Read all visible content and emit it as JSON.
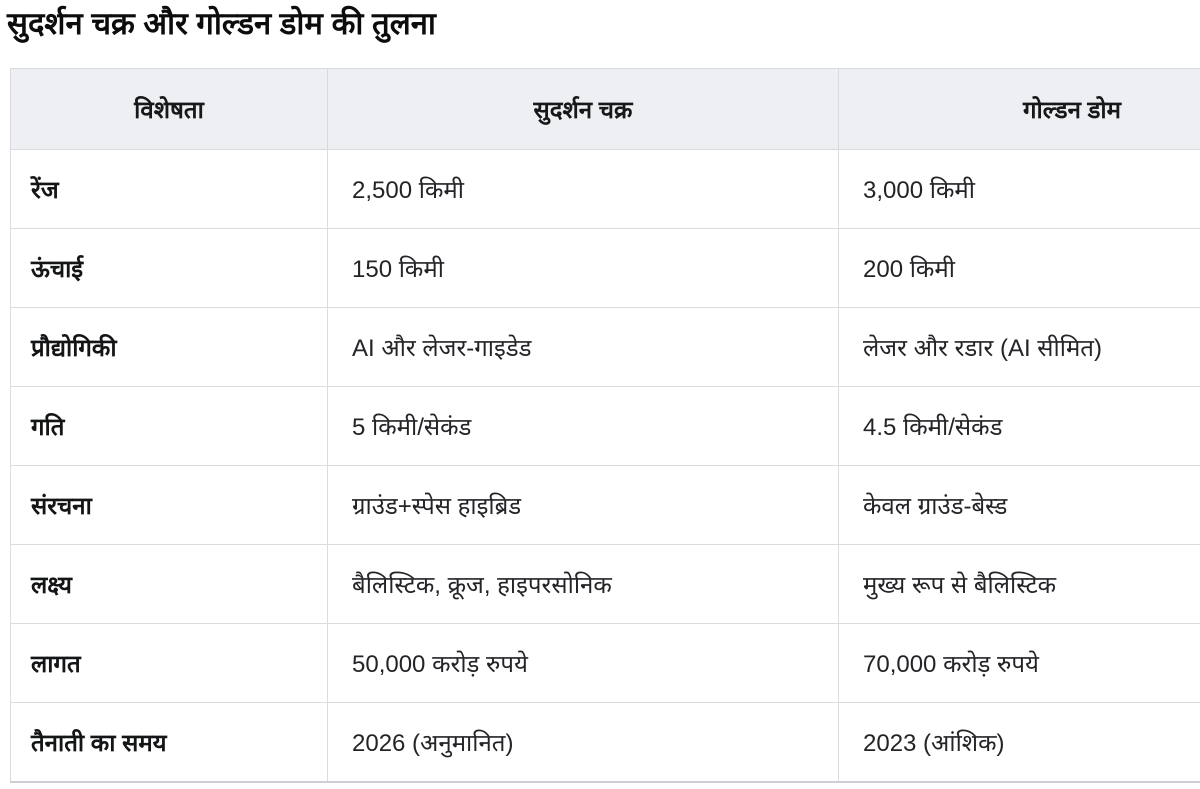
{
  "page": {
    "title": "सुदर्शन चक्र और गोल्डन डोम की तुलना"
  },
  "table": {
    "columns": [
      "विशेषता",
      "सुदर्शन चक्र",
      "गोल्डन डोम"
    ],
    "rows": [
      {
        "feature": "रेंज",
        "sudarshan": "2,500 किमी",
        "golden": "3,000 किमी"
      },
      {
        "feature": "ऊंचाई",
        "sudarshan": "150 किमी",
        "golden": "200 किमी"
      },
      {
        "feature": "प्रौद्योगिकी",
        "sudarshan": "AI और लेजर-गाइडेड",
        "golden": "लेजर और रडार (AI सीमित)"
      },
      {
        "feature": "गति",
        "sudarshan": "5 किमी/सेकंड",
        "golden": "4.5 किमी/सेकंड"
      },
      {
        "feature": "संरचना",
        "sudarshan": "ग्राउंड+स्पेस हाइब्रिड",
        "golden": "केवल ग्राउंड-बेस्ड"
      },
      {
        "feature": "लक्ष्य",
        "sudarshan": "बैलिस्टिक, क्रूज, हाइपरसोनिक",
        "golden": "मुख्य रूप से बैलिस्टिक"
      },
      {
        "feature": "लागत",
        "sudarshan": "50,000 करोड़ रुपये",
        "golden": "70,000 करोड़ रुपये"
      },
      {
        "feature": "तैनाती का समय",
        "sudarshan": "2026 (अनुमानित)",
        "golden": "2023 (आंशिक)"
      }
    ]
  },
  "colors": {
    "header_background": "#edeff3",
    "border": "#d9dce0",
    "bottom_border": "#ccd0d5",
    "text": "#232427",
    "title_text": "#0c0c0d",
    "page_background": "#ffffff"
  }
}
